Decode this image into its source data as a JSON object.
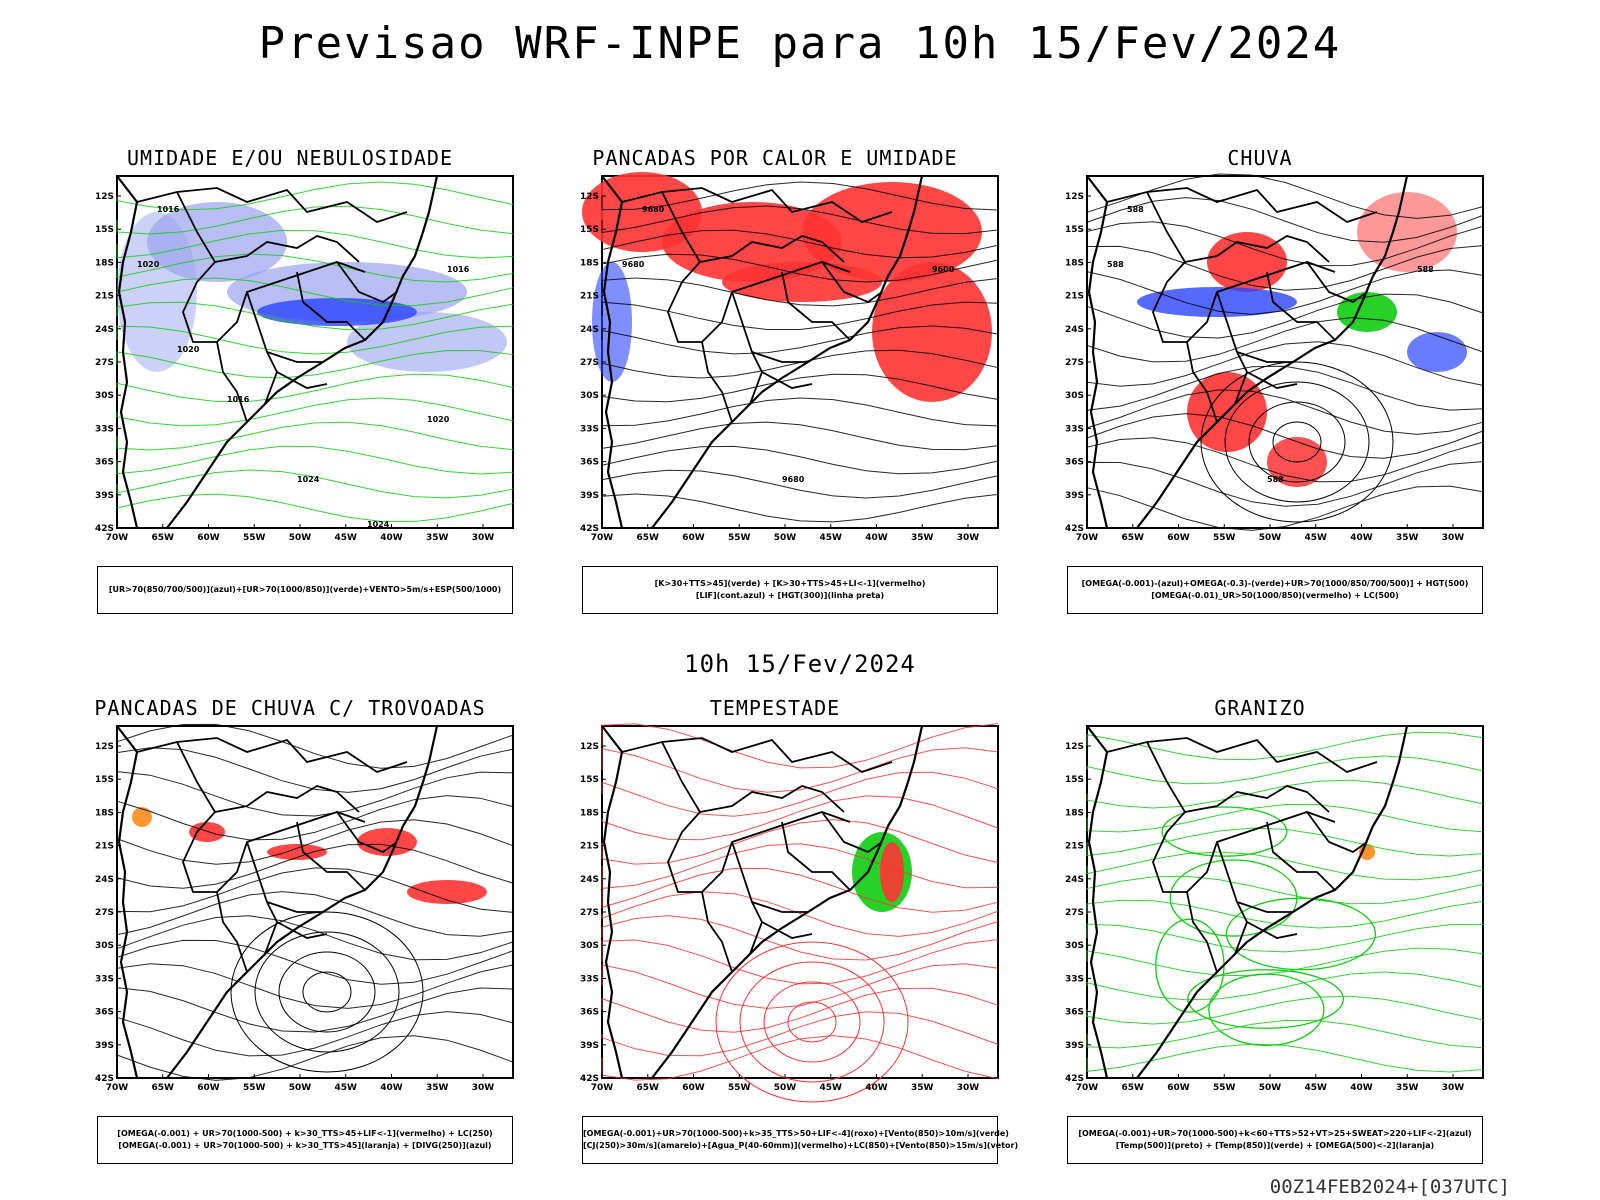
{
  "title": "Previsao WRF-INPE  para 10h 15/Fev/2024",
  "subtitle": "10h 15/Fev/2024",
  "stamp": "00Z14FEB2024+[037UTC]",
  "lat_labels": [
    "12S",
    "15S",
    "18S",
    "21S",
    "24S",
    "27S",
    "30S",
    "33S",
    "36S",
    "39S",
    "42S"
  ],
  "lon_labels": [
    "70W",
    "65W",
    "60W",
    "55W",
    "50W",
    "45W",
    "40W",
    "35W",
    "30W"
  ],
  "colors": {
    "blue": "#2a44ff",
    "green": "#11cc11",
    "red": "#ff3333",
    "orange": "#ff8c1a",
    "lavender": "#9aa3f0"
  },
  "panels": [
    {
      "id": "umidade",
      "title": "UMIDADE E/OU NEBULOSIDADE",
      "legend": [
        "[UR>70(850/700/500)](azul)+[UR>70(1000/850)](verde)+VENTO>5m/s+ESP(500/1000)"
      ],
      "labels": [
        "1016",
        "1020",
        "1024",
        "1016",
        "1020",
        "1016",
        "1020",
        "1024"
      ]
    },
    {
      "id": "calor",
      "title": "PANCADAS POR CALOR E UMIDADE",
      "legend": [
        "[K>30+TTS>45](verde) + [K>30+TTS>45+LI<-1](vermelho)",
        "[LIF](cont.azul) + [HGT(300)](linha preta)"
      ],
      "labels": [
        "9680",
        "9680",
        "9680",
        "9600"
      ]
    },
    {
      "id": "chuva",
      "title": "CHUVA",
      "legend": [
        "[OMEGA(-0.001)-(azul)+OMEGA(-0.3)-(verde)+UR>70(1000/850/700/500)] + HGT(500)",
        "[OMEGA(-0.01)_UR>50(1000/850)(vermelho) + LC(500)"
      ],
      "labels": [
        "588",
        "588",
        "588",
        "588"
      ]
    },
    {
      "id": "trovoadas",
      "title": "PANCADAS DE CHUVA C/ TROVOADAS",
      "legend": [
        "[OMEGA(-0.001) + UR>70(1000-500) + k>30_TTS>45+LIF<-1](vermelho) + LC(250)",
        "[OMEGA(-0.001) + UR>70(1000-500) + k>30_TTS>45](laranja) + [DIVG(250)](azul)"
      ],
      "labels": []
    },
    {
      "id": "tempestade",
      "title": "TEMPESTADE",
      "legend": [
        "[OMEGA(-0.001)+UR>70(1000-500)+k>35_TTS>50+LIF<-4](roxo)+[Vento(850)>10m/s](verde)",
        "[CJ(250)>30m/s](amarelo)+[Agua_P(40-60mm)](vermelho)+LC(850)+[Vento(850)>15m/s](vetor)"
      ],
      "labels": []
    },
    {
      "id": "granizo",
      "title": "GRANIZO",
      "legend": [
        "[OMEGA(-0.001)+UR>70(1000-500)+k<60+TTS>52+VT>25+SWEAT>220+LIF<-2](azul)",
        "[Temp(500)](preto) + [Temp(850)](verde) + [OMEGA(500)<-2](laranja)"
      ],
      "labels": []
    }
  ]
}
